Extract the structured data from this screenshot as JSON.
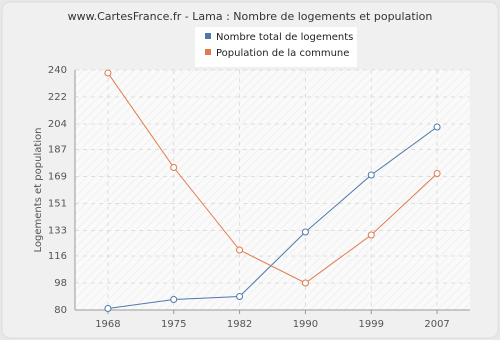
{
  "chart_data": {
    "type": "line",
    "title": "www.CartesFrance.fr - Lama : Nombre de logements et population",
    "y_label": "Logements et population",
    "categories": [
      "1968",
      "1975",
      "1982",
      "1990",
      "1999",
      "2007"
    ],
    "series": [
      {
        "name": "Nombre total de logements",
        "color": "#4f79ad",
        "values": [
          81,
          87,
          89,
          132,
          170,
          202
        ]
      },
      {
        "name": "Population de la commune",
        "color": "#e07a4c",
        "values": [
          238,
          175,
          120,
          98,
          130,
          171
        ]
      }
    ],
    "ylim": [
      80,
      240
    ],
    "yticks": [
      80,
      98,
      116,
      133,
      151,
      169,
      187,
      204,
      222,
      240
    ],
    "grid": true
  }
}
